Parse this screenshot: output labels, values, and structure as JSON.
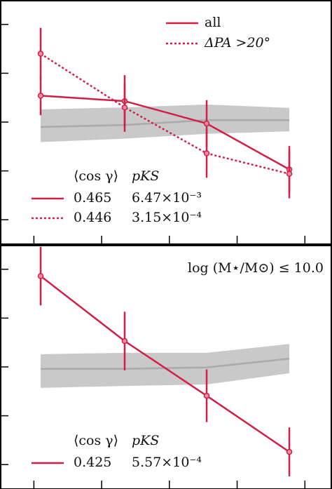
{
  "chart_data": [
    {
      "type": "line",
      "x": [
        0.1,
        1.34,
        2.55,
        3.77
      ],
      "xlim": [
        -0.5,
        4.4
      ],
      "xticks": [
        0,
        1,
        2,
        3,
        4
      ],
      "ylim": [
        -0.5,
        4.5
      ],
      "yticks": [
        0,
        1,
        2,
        3,
        4
      ],
      "series": [
        {
          "name": "all",
          "color": "#d11f48",
          "linestyle": "solid",
          "values": [
            2.54,
            2.43,
            1.97,
            1.03
          ],
          "errors": [
            0.4,
            0.53,
            0.48,
            0.48
          ]
        },
        {
          "name": "ΔPA >20°",
          "color": "#d11f48",
          "linestyle": "dotted",
          "values": [
            3.4,
            2.3,
            1.36,
            0.94
          ],
          "errors": [
            0.53,
            0.5,
            0.5,
            0.5
          ]
        }
      ],
      "band": {
        "color": "#c9c9c9",
        "line_color": "#aaaaaa",
        "median": [
          1.9,
          1.94,
          2.04,
          2.04
        ],
        "upper": [
          2.26,
          2.3,
          2.36,
          2.29
        ],
        "lower": [
          1.59,
          1.66,
          1.76,
          1.81
        ]
      },
      "table": {
        "header": [
          "⟨cos γ⟩",
          "pKS"
        ],
        "rows": [
          [
            "0.465",
            "6.47×10⁻³"
          ],
          [
            "0.446",
            "3.15×10⁻⁴"
          ]
        ]
      }
    },
    {
      "type": "line",
      "x": [
        0.1,
        1.34,
        2.55,
        3.77
      ],
      "xlim": [
        -0.5,
        4.4
      ],
      "xticks": [
        0,
        1,
        2,
        3,
        4
      ],
      "ylim": [
        -0.5,
        4.5
      ],
      "yticks": [
        0,
        1,
        2,
        3,
        4
      ],
      "annotation": "log (M⋆/M⊙) ≤ 10.0",
      "series": [
        {
          "color": "#d11f48",
          "linestyle": "solid",
          "values": [
            3.86,
            2.53,
            1.41,
            0.26
          ],
          "errors": [
            0.6,
            0.6,
            0.54,
            0.5
          ]
        }
      ],
      "band": {
        "color": "#c9c9c9",
        "line_color": "#aaaaaa",
        "median": [
          1.96,
          1.96,
          1.99,
          2.17
        ],
        "upper": [
          2.26,
          2.29,
          2.29,
          2.47
        ],
        "lower": [
          1.57,
          1.61,
          1.64,
          1.87
        ]
      },
      "table": {
        "header": [
          "⟨cos γ⟩",
          "pKS"
        ],
        "rows": [
          [
            "0.425",
            "5.57×10⁻⁴"
          ]
        ]
      }
    }
  ]
}
